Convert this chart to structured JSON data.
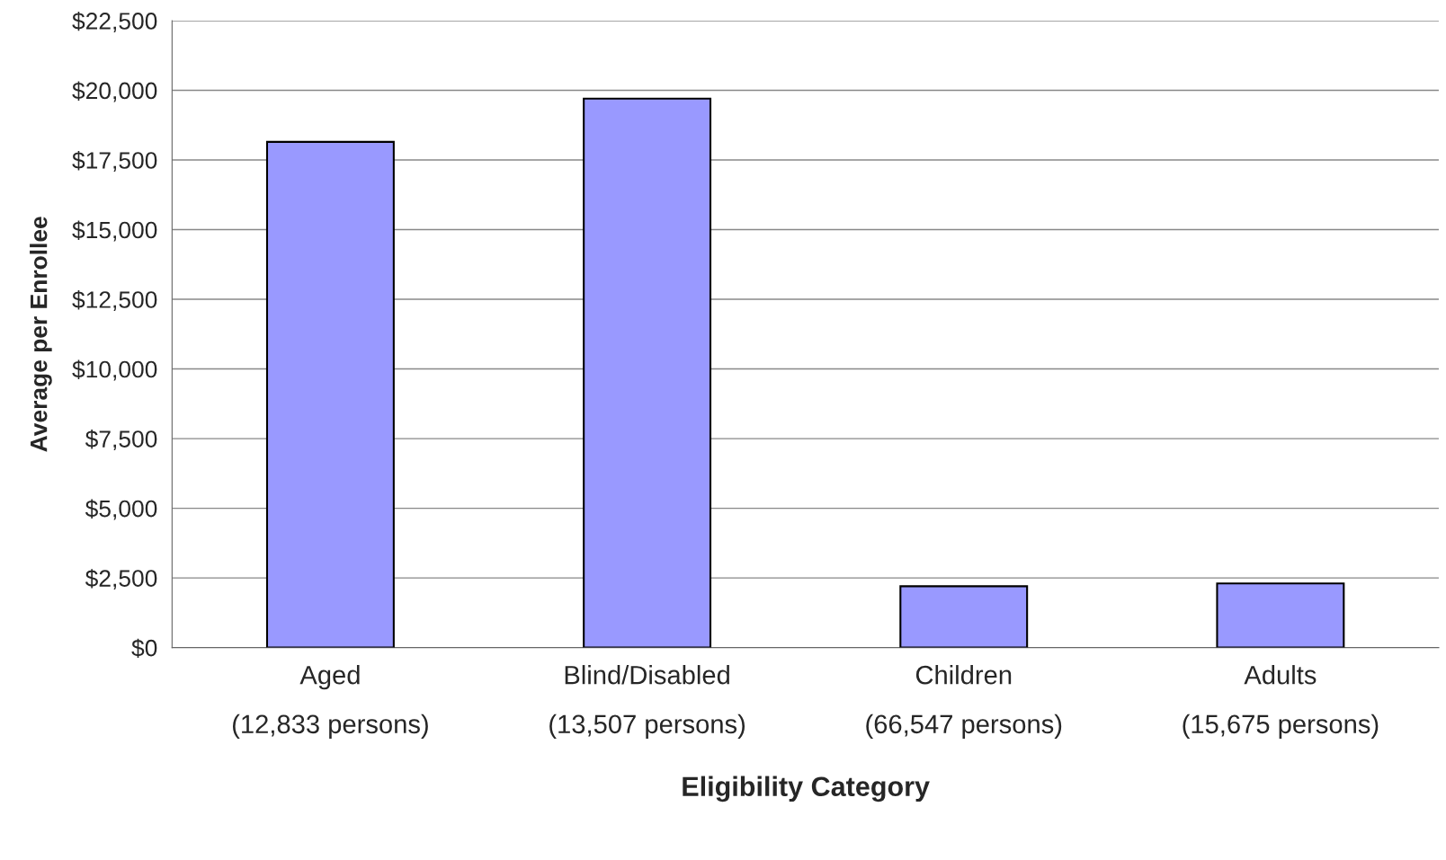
{
  "chart_data": {
    "type": "bar",
    "xlabel": "Eligibility Category",
    "ylabel": "Average per Enrollee",
    "categories": [
      "Aged\n(12,833 persons)",
      "Blind/Disabled\n(13,507 persons)",
      "Children\n(66,547 persons)",
      "Adults\n(15,675 persons)"
    ],
    "values": [
      18150,
      19700,
      2200,
      2300
    ],
    "color": "#9999ff",
    "ylim": [
      0,
      22500
    ],
    "yticks": [
      {
        "value": 0,
        "label": "$0"
      },
      {
        "value": 2500,
        "label": "$2,500"
      },
      {
        "value": 5000,
        "label": "$5,000"
      },
      {
        "value": 7500,
        "label": "$7,500"
      },
      {
        "value": 10000,
        "label": "$10,000"
      },
      {
        "value": 12500,
        "label": "$12,500"
      },
      {
        "value": 15000,
        "label": "$15,000"
      },
      {
        "value": 17500,
        "label": "$17,500"
      },
      {
        "value": 20000,
        "label": "$20,000"
      },
      {
        "value": 22500,
        "label": "$22,500"
      }
    ],
    "grid": "y",
    "legend": false
  }
}
